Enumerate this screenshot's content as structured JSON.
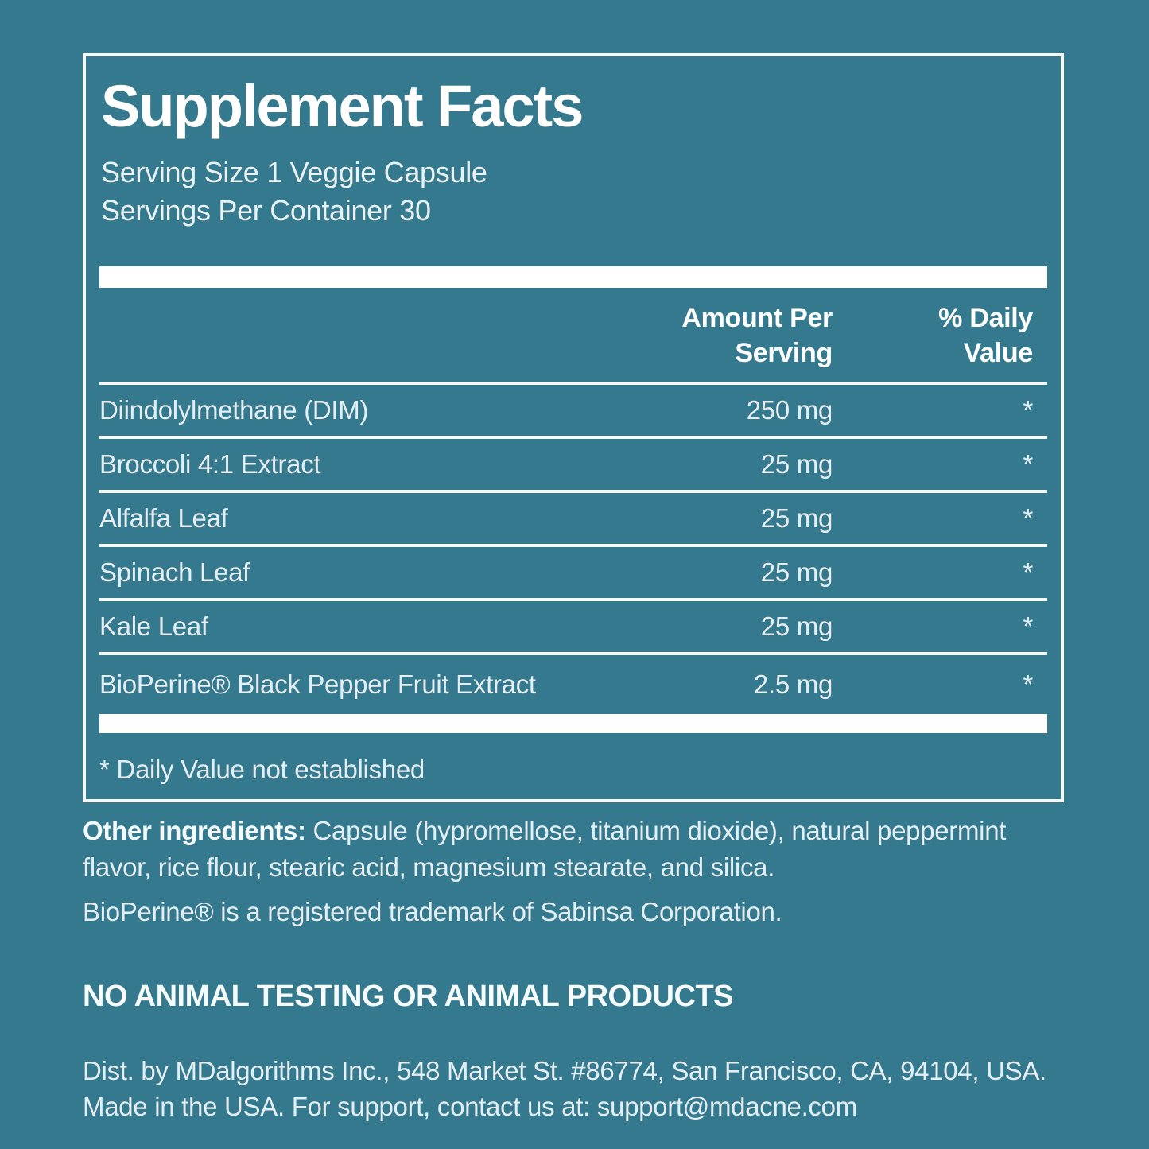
{
  "colors": {
    "background": "#35798E",
    "panel_border": "#F4FAFC",
    "bright_text": "#FFFFFF",
    "body_text": "#E5EFF3"
  },
  "panel": {
    "title": "Supplement Facts",
    "serving_size": "Serving Size 1 Veggie Capsule",
    "servings_per_container": "Servings Per Container 30",
    "columns": {
      "amount_header": "Amount Per\nServing",
      "daily_value_header": "% Daily\nValue"
    },
    "rows": [
      {
        "name": "Diindolylmethane (DIM)",
        "amount": "250 mg",
        "dv": "*"
      },
      {
        "name": "Broccoli 4:1 Extract",
        "amount": "25 mg",
        "dv": "*"
      },
      {
        "name": "Alfalfa Leaf",
        "amount": "25 mg",
        "dv": "*"
      },
      {
        "name": "Spinach Leaf",
        "amount": "25 mg",
        "dv": "*"
      },
      {
        "name": "Kale Leaf",
        "amount": "25 mg",
        "dv": "*"
      },
      {
        "name": "BioPerine® Black Pepper Fruit Extract",
        "amount": "2.5 mg",
        "dv": "*"
      }
    ],
    "footnote": "* Daily Value not established"
  },
  "other_ingredients": {
    "label": "Other ingredients:",
    "text": " Capsule (hypromellose, titanium dioxide), natural peppermint flavor, rice flour, stearic acid, magnesium stearate, and silica."
  },
  "trademark_note": "BioPerine® is a registered trademark of Sabinsa Corporation.",
  "claim": "NO ANIMAL TESTING OR ANIMAL PRODUCTS",
  "distribution": {
    "line1": "Dist. by MDalgorithms Inc., 548 Market St. #86774, San Francisco, CA, 94104, USA.",
    "line2": "Made in the USA. For support, contact us at: support@mdacne.com"
  }
}
